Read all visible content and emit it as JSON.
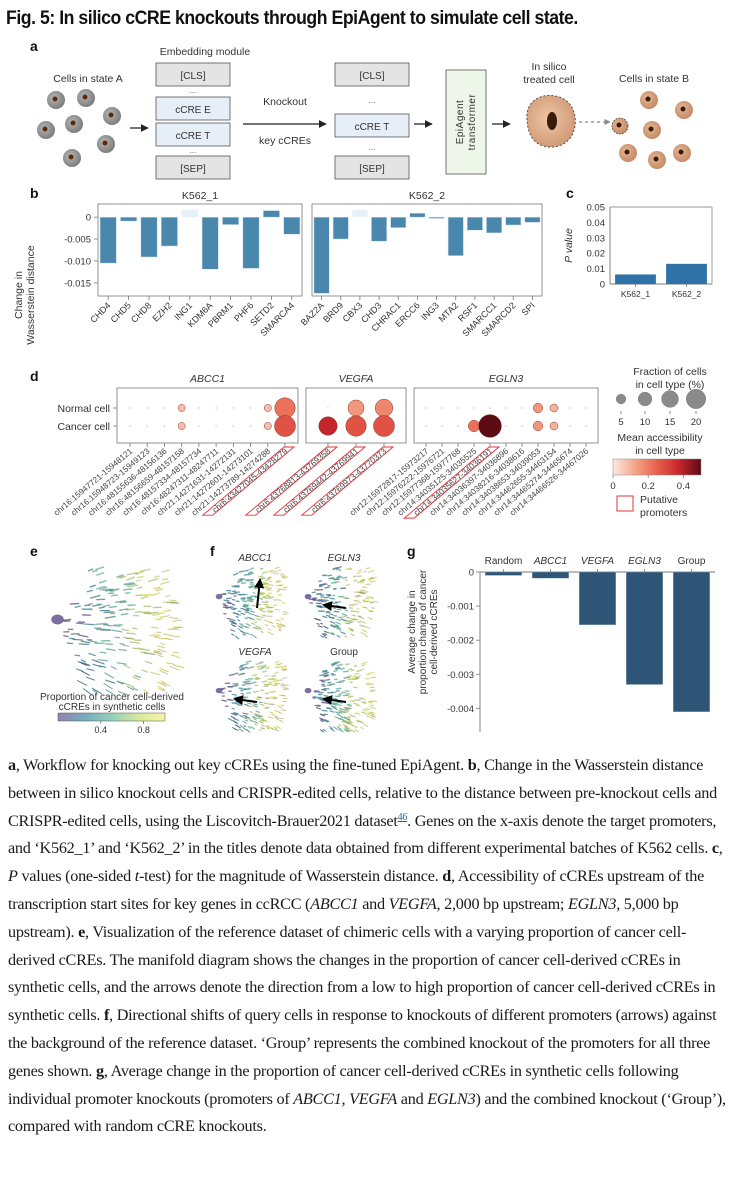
{
  "figure": {
    "title": "Fig. 5: In silico cCRE knockouts through EpiAgent to simulate cell state.",
    "panel_letters": [
      "a",
      "b",
      "c",
      "d",
      "e",
      "f",
      "g"
    ]
  },
  "panel_a": {
    "cells_state_a": "Cells in state A",
    "embedding_module": "Embedding module",
    "tokens_left": [
      "[CLS]",
      "...",
      "cCRE E",
      "cCRE T",
      "...",
      "[SEP]"
    ],
    "knockout": "Knockout",
    "key_ccres": "key cCREs",
    "tokens_right": [
      "[CLS]",
      "...",
      "cCRE T",
      "...",
      "[SEP]"
    ],
    "transformer_line1": "EpiAgent",
    "transformer_line2": "transformer",
    "treated_line1": "In silico",
    "treated_line2": "treated cell",
    "cells_state_b": "Cells in state B"
  },
  "chart_data": [
    {
      "id": "b",
      "type": "bar",
      "ylabel": "Change in Wasserstein distance",
      "ylim": [
        -0.018,
        0.003
      ],
      "yticks": [
        0,
        -0.005,
        -0.01,
        -0.015
      ],
      "ytick_labels": [
        "0",
        "-0.005",
        "-0.010",
        "-0.015"
      ],
      "color": "#4a87ad",
      "faint_color": "#e8f1f8",
      "panels": [
        {
          "title": "K562_1",
          "categories": [
            "CHD4",
            "CHD5",
            "CHD8",
            "EZH2",
            "ING1",
            "KDM6A",
            "PBRM1",
            "PHF6",
            "SETD2",
            "SMARCA4"
          ],
          "values": [
            -0.0105,
            -0.0009,
            -0.0091,
            -0.0066,
            0.0017,
            -0.0119,
            -0.0017,
            -0.0117,
            0.0015,
            -0.0039
          ]
        },
        {
          "title": "K562_2",
          "categories": [
            "BAZ2A",
            "BRD9",
            "CBX3",
            "CHD3",
            "CHRAC1",
            "ERCC6",
            "ING3",
            "MTA2",
            "RSF1",
            "SMARCC1",
            "SMARCD2",
            "SPI"
          ],
          "values": [
            -0.0174,
            -0.005,
            0.0017,
            -0.0055,
            -0.0024,
            0.0009,
            -0.0003,
            -0.0088,
            -0.003,
            -0.0036,
            -0.0018,
            -0.0012
          ]
        }
      ]
    },
    {
      "id": "c",
      "type": "bar",
      "ylabel": "P value",
      "ylim": [
        0,
        0.05
      ],
      "yticks": [
        0,
        0.01,
        0.02,
        0.03,
        0.04,
        0.05
      ],
      "ytick_labels": [
        "0",
        "0.01",
        "0.02",
        "0.03",
        "0.04",
        "0.05"
      ],
      "categories": [
        "K562_1",
        "K562_2"
      ],
      "values": [
        0.0062,
        0.0131
      ],
      "color": "#2f72a8"
    },
    {
      "id": "d",
      "type": "scatter",
      "subtype": "dotplot",
      "rows": [
        "Normal cell",
        "Cancer cell"
      ],
      "groups": [
        {
          "title": "ABCC1",
          "regions": [
            "chr16:15947721-15948121",
            "chr16:15948723-15949123",
            "chr16:48155636-48156136",
            "chr16:48156659-48157158",
            "chr16:48157334-48157734",
            "chr16:48247311-48247711",
            "chr21:14271631-14272131",
            "chr21:14272601-14273101",
            "chr21:14273789-14274288",
            "chr6:43427045-43428279"
          ],
          "putative_promoter": [
            false,
            false,
            false,
            false,
            false,
            false,
            false,
            false,
            false,
            true
          ],
          "fraction_pct": [
            [
              0.5,
              0.6,
              0.5,
              2.0,
              0.5,
              0.6,
              0.4,
              0.4,
              2.0,
              16
            ],
            [
              0.5,
              0.8,
              0.5,
              2.0,
              0.5,
              0.6,
              0.4,
              0.4,
              2.0,
              17
            ]
          ],
          "mean_accessibility": [
            [
              0.05,
              0.05,
              0.05,
              0.08,
              0.05,
              0.05,
              0.05,
              0.05,
              0.08,
              0.22
            ],
            [
              0.05,
              0.05,
              0.05,
              0.08,
              0.05,
              0.05,
              0.05,
              0.05,
              0.08,
              0.28
            ]
          ]
        },
        {
          "title": "VEGFA",
          "regions": [
            "chr6:43768813-43769358",
            "chr6:43769442-43769941",
            "chr6:43769973-43770373"
          ],
          "putative_promoter": [
            true,
            true,
            true
          ],
          "fraction_pct": [
            [
              0.8,
              10,
              12
            ],
            [
              13,
              16,
              17
            ]
          ],
          "mean_accessibility": [
            [
              0.1,
              0.15,
              0.18
            ],
            [
              0.38,
              0.28,
              0.28
            ]
          ]
        },
        {
          "title": "EGLN3",
          "regions": [
            "chr12:15972817-15973217",
            "chr12:15976222-15976721",
            "chr12:15977368-15977768",
            "chr14:34035125-34035525",
            "chr14:34035627-34036191",
            "chr14:34036397-34036896",
            "chr14:34038216-34038616",
            "chr14:34038653-34039053",
            "chr14:34462655-34463154",
            "chr14:34465274-34465674",
            "chr14:34466526-34467026"
          ],
          "putative_promoter": [
            false,
            false,
            false,
            false,
            true,
            false,
            false,
            false,
            false,
            false,
            false
          ],
          "fraction_pct": [
            [
              0.5,
              0.5,
              0.5,
              0.5,
              0.7,
              0.3,
              0.5,
              3.5,
              2.5,
              0.5,
              0.5
            ],
            [
              0.5,
              0.5,
              0.5,
              5,
              20,
              0.5,
              0.8,
              3.5,
              2.5,
              0.5,
              0.5
            ]
          ],
          "mean_accessibility": [
            [
              0.05,
              0.05,
              0.05,
              0.05,
              0.05,
              0.05,
              0.05,
              0.15,
              0.1,
              0.05,
              0.05
            ],
            [
              0.05,
              0.05,
              0.05,
              0.22,
              0.5,
              0.05,
              0.08,
              0.15,
              0.1,
              0.05,
              0.05
            ]
          ]
        }
      ],
      "size_legend": {
        "title_line1": "Fraction of cells",
        "title_line2": "in cell type (%)",
        "values": [
          5,
          10,
          15,
          20
        ]
      },
      "color_legend": {
        "title_line1": "Mean accessibility",
        "title_line2": "in cell type",
        "ticks": [
          0,
          0.2,
          0.4
        ],
        "tick_labels": [
          "0",
          "0.2",
          "0.4"
        ],
        "range": [
          0,
          0.5
        ],
        "colors": [
          "#fde9e2",
          "#f4a58a",
          "#e8604c",
          "#c7262c",
          "#5c0a14"
        ]
      },
      "promoter_legend": {
        "line1": "Putative",
        "line2": "promoters",
        "color": "#e0353b"
      }
    },
    {
      "id": "e",
      "type": "scatter",
      "subtype": "stream-embedding",
      "colorbar_label_line1": "Proportion of cancer cell-derived",
      "colorbar_label_line2": "cCREs in synthetic cells",
      "colorbar_ticks": [
        0.4,
        0.8
      ],
      "colorbar_tick_labels": [
        "0.4",
        "0.8"
      ],
      "colors": [
        "#6b5b95",
        "#4b8fa8",
        "#6fc1a4",
        "#c9e27a",
        "#f5f08c"
      ]
    },
    {
      "id": "f",
      "type": "scatter",
      "subtype": "stream-embedding-small-multiples",
      "panels": [
        {
          "title": "ABCC1",
          "italic": true,
          "arrow_direction": "up"
        },
        {
          "title": "EGLN3",
          "italic": true,
          "arrow_direction": "left"
        },
        {
          "title": "VEGFA",
          "italic": true,
          "arrow_direction": "left"
        },
        {
          "title": "Group",
          "italic": false,
          "arrow_direction": "left"
        }
      ]
    },
    {
      "id": "g",
      "type": "bar",
      "ylabel_line1": "Average change in",
      "ylabel_line2": "proportion change of cancer",
      "ylabel_line3": "cell-derived cCREs",
      "categories": [
        "Random",
        "ABCC1",
        "VEGFA",
        "EGLN3",
        "Group"
      ],
      "category_italic": [
        false,
        true,
        true,
        true,
        false
      ],
      "values": [
        -0.0001,
        -0.00018,
        -0.00155,
        -0.0033,
        -0.0041
      ],
      "ylim": [
        -0.0044,
        0
      ],
      "yticks": [
        0,
        -0.001,
        -0.002,
        -0.003,
        -0.004
      ],
      "ytick_labels": [
        "0",
        "-0.001",
        "-0.002",
        "-0.003",
        "-0.004"
      ],
      "color": "#2f5576"
    }
  ],
  "caption": {
    "a_label": "a",
    "a_text": ", Workflow for knocking out key cCREs using the fine-tuned EpiAgent. ",
    "b_label": "b",
    "b_text": ", Change in the Wasserstein distance between in silico knockout cells and CRISPR-edited cells, relative to the distance between pre-knockout cells and CRISPR-edited cells, using the Liscovitch-Brauer2021 dataset",
    "b_ref": "46",
    "b_text2": ". Genes on the x-axis denote the target promoters, and ‘K562_1’ and ‘K562_2’ in the titles denote data obtained from different experimental batches of K562 cells. ",
    "c_label": "c",
    "c_text1": ", ",
    "c_italic_p": "P",
    "c_text2": " values (one-sided ",
    "c_italic_t": "t",
    "c_text3": "-test) for the magnitude of Wasserstein distance. ",
    "d_label": "d",
    "d_text1": ", Accessibility of cCREs upstream of the transcription start sites for key genes in ccRCC (",
    "d_gene1": "ABCC1",
    "d_text2": " and ",
    "d_gene2": "VEGFA",
    "d_text3": ", 2,000 bp upstream; ",
    "d_gene3": "EGLN3",
    "d_text4": ", 5,000 bp upstream). ",
    "e_label": "e",
    "e_text": ", Visualization of the reference dataset of chimeric cells with a varying proportion of cancer cell-derived cCREs. The manifold diagram shows the changes in the proportion of cancer cell-derived cCREs in synthetic cells, and the arrows denote the direction from a low to high proportion of cancer cell-derived cCREs in synthetic cells. ",
    "f_label": "f",
    "f_text": ", Directional shifts of query cells in response to knockouts of different promoters (arrows) against the background of the reference dataset. ‘Group’ represents the combined knockout of the promoters for all three genes shown. ",
    "g_label": "g",
    "g_text1": ", Average change in the proportion of cancer cell-derived cCREs in synthetic cells following individual promoter knockouts (promoters of ",
    "g_gene1": "ABCC1",
    "g_text2": ", ",
    "g_gene2": "VEGFA",
    "g_text3": " and ",
    "g_gene3": "EGLN3",
    "g_text4": ") and the combined knockout (‘Group’), compared with random cCRE knockouts."
  }
}
